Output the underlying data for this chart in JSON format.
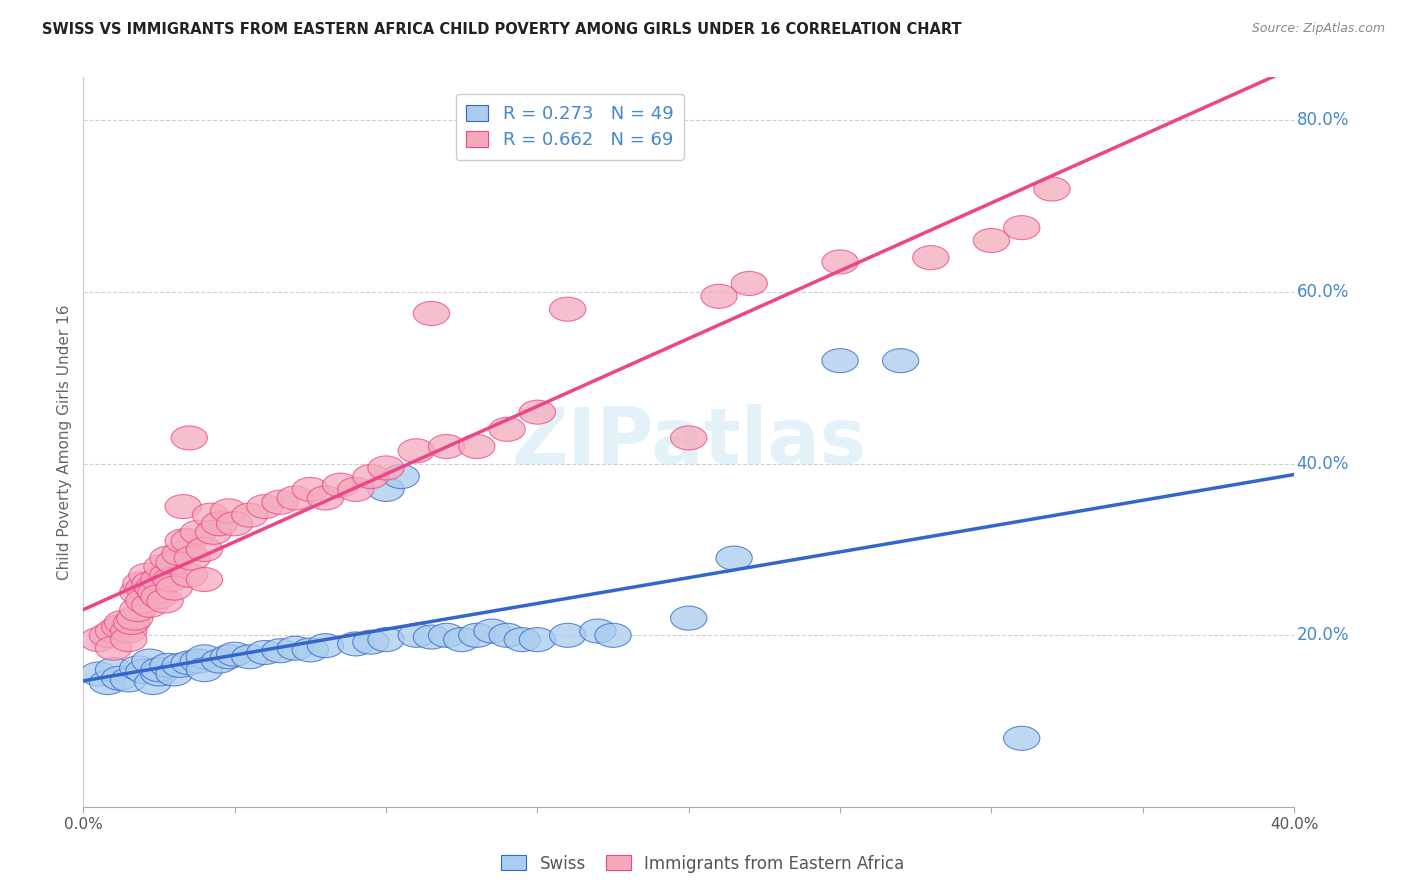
{
  "title": "SWISS VS IMMIGRANTS FROM EASTERN AFRICA CHILD POVERTY AMONG GIRLS UNDER 16 CORRELATION CHART",
  "source": "Source: ZipAtlas.com",
  "ylabel": "Child Poverty Among Girls Under 16",
  "xlim": [
    0.0,
    0.4
  ],
  "ylim": [
    0.0,
    0.85
  ],
  "yticks": [
    0.0,
    0.2,
    0.4,
    0.6,
    0.8
  ],
  "ytick_labels": [
    "",
    "20.0%",
    "40.0%",
    "60.0%",
    "80.0%"
  ],
  "xticks": [
    0.0,
    0.05,
    0.1,
    0.15,
    0.2,
    0.25,
    0.3,
    0.35,
    0.4
  ],
  "xtick_labels": [
    "0.0%",
    "",
    "",
    "",
    "",
    "",
    "",
    "",
    "40.0%"
  ],
  "swiss_color": "#aaccee",
  "immigrant_color": "#f4aabb",
  "swiss_line_color": "#3366cc",
  "immigrant_line_color": "#ee4488",
  "swiss_R": 0.273,
  "swiss_N": 49,
  "immigrant_R": 0.662,
  "immigrant_N": 69,
  "watermark": "ZIPatlas",
  "background_color": "#ffffff",
  "tick_label_color": "#4488cc",
  "swiss_scatter": [
    [
      0.005,
      0.155
    ],
    [
      0.008,
      0.145
    ],
    [
      0.01,
      0.16
    ],
    [
      0.012,
      0.15
    ],
    [
      0.015,
      0.148
    ],
    [
      0.018,
      0.162
    ],
    [
      0.02,
      0.158
    ],
    [
      0.022,
      0.17
    ],
    [
      0.023,
      0.145
    ],
    [
      0.025,
      0.155
    ],
    [
      0.025,
      0.16
    ],
    [
      0.028,
      0.165
    ],
    [
      0.03,
      0.155
    ],
    [
      0.032,
      0.165
    ],
    [
      0.035,
      0.168
    ],
    [
      0.038,
      0.17
    ],
    [
      0.04,
      0.175
    ],
    [
      0.04,
      0.16
    ],
    [
      0.045,
      0.17
    ],
    [
      0.048,
      0.175
    ],
    [
      0.05,
      0.178
    ],
    [
      0.055,
      0.175
    ],
    [
      0.06,
      0.18
    ],
    [
      0.065,
      0.182
    ],
    [
      0.07,
      0.185
    ],
    [
      0.075,
      0.183
    ],
    [
      0.08,
      0.188
    ],
    [
      0.09,
      0.19
    ],
    [
      0.095,
      0.192
    ],
    [
      0.1,
      0.195
    ],
    [
      0.1,
      0.37
    ],
    [
      0.105,
      0.385
    ],
    [
      0.11,
      0.2
    ],
    [
      0.115,
      0.198
    ],
    [
      0.12,
      0.2
    ],
    [
      0.125,
      0.195
    ],
    [
      0.13,
      0.2
    ],
    [
      0.135,
      0.205
    ],
    [
      0.14,
      0.2
    ],
    [
      0.145,
      0.195
    ],
    [
      0.15,
      0.195
    ],
    [
      0.16,
      0.2
    ],
    [
      0.17,
      0.205
    ],
    [
      0.175,
      0.2
    ],
    [
      0.2,
      0.22
    ],
    [
      0.215,
      0.29
    ],
    [
      0.25,
      0.52
    ],
    [
      0.27,
      0.52
    ],
    [
      0.31,
      0.08
    ]
  ],
  "immigrant_scatter": [
    [
      0.005,
      0.195
    ],
    [
      0.008,
      0.2
    ],
    [
      0.01,
      0.205
    ],
    [
      0.01,
      0.185
    ],
    [
      0.012,
      0.21
    ],
    [
      0.013,
      0.215
    ],
    [
      0.015,
      0.205
    ],
    [
      0.015,
      0.195
    ],
    [
      0.016,
      0.215
    ],
    [
      0.017,
      0.22
    ],
    [
      0.018,
      0.23
    ],
    [
      0.018,
      0.25
    ],
    [
      0.019,
      0.26
    ],
    [
      0.02,
      0.255
    ],
    [
      0.02,
      0.24
    ],
    [
      0.021,
      0.27
    ],
    [
      0.022,
      0.235
    ],
    [
      0.022,
      0.26
    ],
    [
      0.023,
      0.255
    ],
    [
      0.024,
      0.25
    ],
    [
      0.025,
      0.265
    ],
    [
      0.025,
      0.245
    ],
    [
      0.026,
      0.28
    ],
    [
      0.027,
      0.24
    ],
    [
      0.028,
      0.27
    ],
    [
      0.028,
      0.29
    ],
    [
      0.029,
      0.265
    ],
    [
      0.03,
      0.255
    ],
    [
      0.03,
      0.285
    ],
    [
      0.032,
      0.295
    ],
    [
      0.033,
      0.31
    ],
    [
      0.033,
      0.35
    ],
    [
      0.035,
      0.27
    ],
    [
      0.035,
      0.31
    ],
    [
      0.036,
      0.29
    ],
    [
      0.038,
      0.32
    ],
    [
      0.04,
      0.265
    ],
    [
      0.04,
      0.3
    ],
    [
      0.042,
      0.34
    ],
    [
      0.043,
      0.32
    ],
    [
      0.045,
      0.33
    ],
    [
      0.048,
      0.345
    ],
    [
      0.05,
      0.33
    ],
    [
      0.055,
      0.34
    ],
    [
      0.06,
      0.35
    ],
    [
      0.065,
      0.355
    ],
    [
      0.07,
      0.36
    ],
    [
      0.075,
      0.37
    ],
    [
      0.08,
      0.36
    ],
    [
      0.085,
      0.375
    ],
    [
      0.09,
      0.37
    ],
    [
      0.095,
      0.385
    ],
    [
      0.1,
      0.395
    ],
    [
      0.11,
      0.415
    ],
    [
      0.12,
      0.42
    ],
    [
      0.13,
      0.42
    ],
    [
      0.14,
      0.44
    ],
    [
      0.15,
      0.46
    ],
    [
      0.16,
      0.58
    ],
    [
      0.2,
      0.43
    ],
    [
      0.21,
      0.595
    ],
    [
      0.22,
      0.61
    ],
    [
      0.25,
      0.635
    ],
    [
      0.28,
      0.64
    ],
    [
      0.3,
      0.66
    ],
    [
      0.31,
      0.675
    ],
    [
      0.32,
      0.72
    ],
    [
      0.115,
      0.575
    ],
    [
      0.035,
      0.43
    ]
  ]
}
